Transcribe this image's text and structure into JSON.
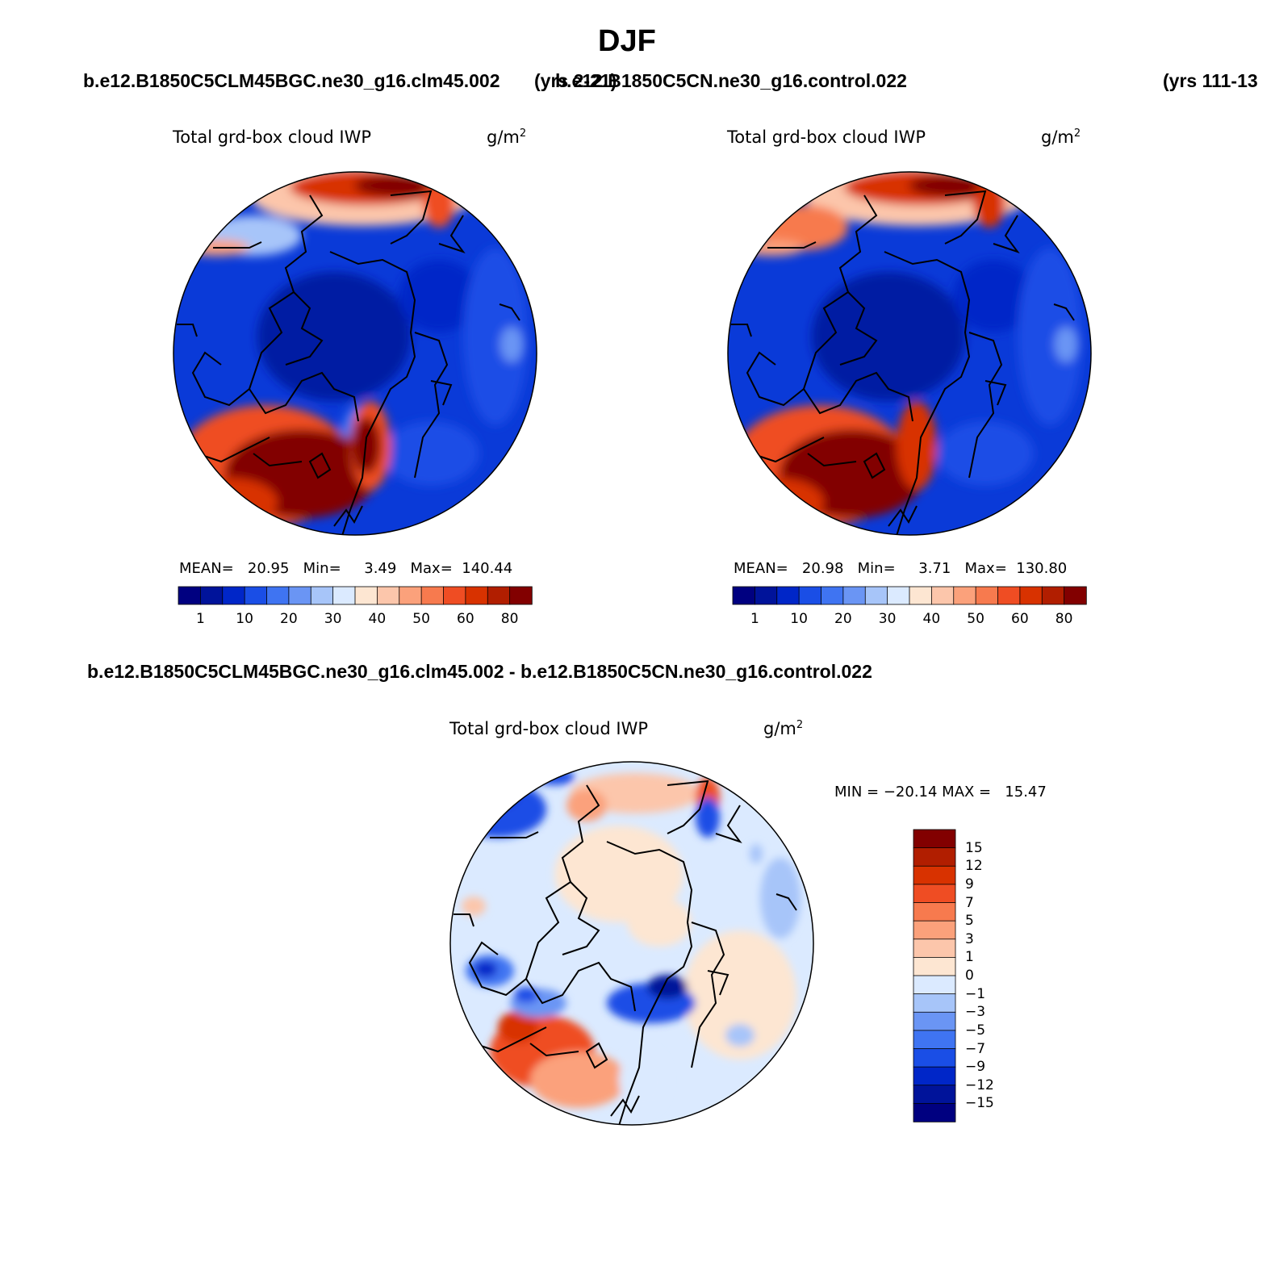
{
  "figure_title": "DJF",
  "case_header": {
    "case1": "b.e12.B1850C5CLM45BGC.ne30_g16.clm45.002",
    "case1_years": "(yrs 2-21)",
    "case2": "b.e12.B1850C5CN.ne30_g16.control.022",
    "case2_years": "(yrs 111-13"
  },
  "panels": [
    {
      "variable": "Total grd-box cloud IWP",
      "units": "g/m",
      "units_sup": "2",
      "stats": "MEAN=   20.95   Min=     3.49   Max=  140.44"
    },
    {
      "variable": "Total grd-box cloud IWP",
      "units": "g/m",
      "units_sup": "2",
      "stats": "MEAN=   20.98   Min=     3.71   Max=  130.80"
    }
  ],
  "difference": {
    "title": "b.e12.B1850C5CLM45BGC.ne30_g16.clm45.002 - b.e12.B1850C5CN.ne30_g16.control.022",
    "variable": "Total grd-box cloud IWP",
    "units": "g/m",
    "units_sup": "2",
    "stats": "MIN = −20.14 MAX =   15.47"
  },
  "colorbar_main": {
    "colors": [
      "#000080",
      "#00139a",
      "#0026c8",
      "#1a4ee6",
      "#3f74f2",
      "#6a95f4",
      "#a7c5f9",
      "#dbeaff",
      "#fde6d2",
      "#fcc6ab",
      "#fba17b",
      "#f77a4e",
      "#ef4d23",
      "#d83200",
      "#b11e00",
      "#820000"
    ],
    "tick_labels": [
      "1",
      "10",
      "20",
      "30",
      "40",
      "50",
      "60",
      "80"
    ]
  },
  "colorbar_diff": {
    "colors_top_to_bottom": [
      "#820000",
      "#b11e00",
      "#d83200",
      "#ef4d23",
      "#f77a4e",
      "#fba17b",
      "#fcc6ab",
      "#fde6d2",
      "#dbeaff",
      "#a7c5f9",
      "#6a95f4",
      "#3f74f2",
      "#1a4ee6",
      "#0026c8",
      "#00139a",
      "#000080"
    ],
    "tick_labels": [
      "15",
      "12",
      "9",
      "7",
      "5",
      "3",
      "1",
      "0",
      "−1",
      "−3",
      "−5",
      "−7",
      "−9",
      "−12",
      "−15"
    ]
  }
}
